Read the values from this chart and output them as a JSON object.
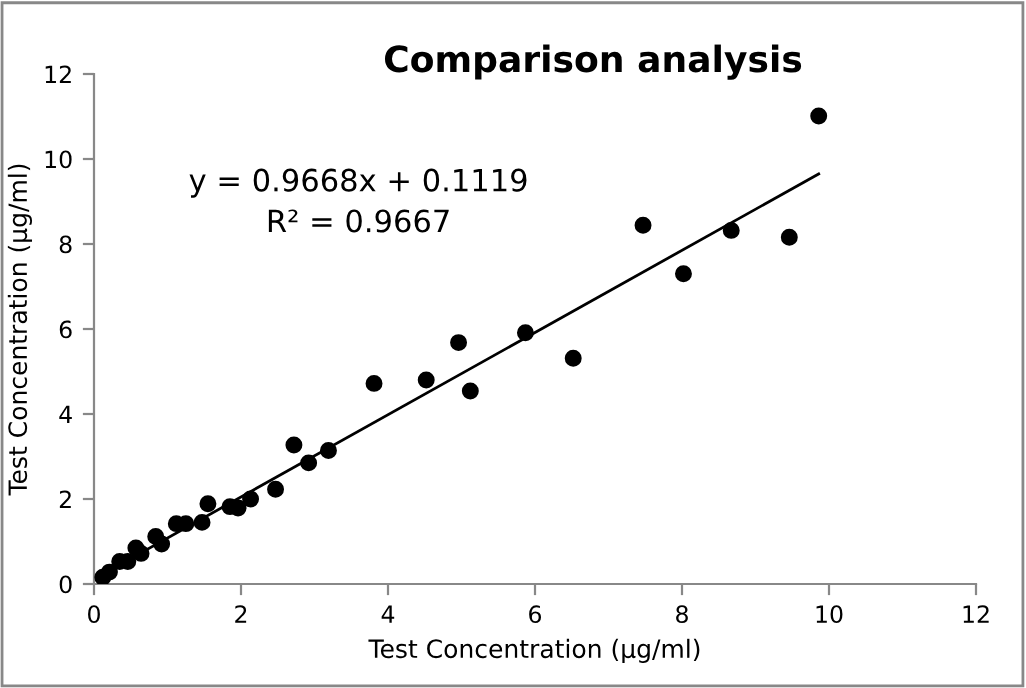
{
  "chart_data": {
    "type": "scatter",
    "title": "Comparison analysis",
    "xlabel": "Test Concentration (µg/ml)",
    "ylabel": "Test Concentration (µg/ml)",
    "annotations": [
      "y = 0.9668x + 0.1119",
      "R² = 0.9667"
    ],
    "series": [
      {
        "color": "#000000",
        "marker": "circle",
        "x": [
          0.12,
          0.21,
          0.35,
          0.46,
          0.57,
          0.64,
          0.84,
          0.92,
          1.12,
          1.25,
          1.47,
          1.55,
          1.85,
          1.96,
          2.13,
          2.47,
          2.72,
          2.92,
          3.19,
          3.81,
          4.52,
          4.96,
          5.12,
          5.87,
          6.52,
          7.47,
          8.02,
          8.67,
          9.46,
          9.86
        ],
        "values": [
          0.16,
          0.28,
          0.53,
          0.53,
          0.85,
          0.72,
          1.12,
          0.94,
          1.42,
          1.42,
          1.45,
          1.89,
          1.82,
          1.79,
          2.0,
          2.23,
          3.27,
          2.85,
          3.14,
          4.72,
          4.8,
          5.68,
          4.54,
          5.91,
          5.31,
          8.44,
          7.3,
          8.32,
          8.16,
          11.01
        ]
      },
      {
        "type": "line",
        "color": "#000000",
        "marker": "none",
        "line_style": "solid",
        "x": [
          0.12,
          9.86
        ],
        "values": [
          0.23,
          9.65
        ]
      }
    ],
    "xlim": [
      0,
      12
    ],
    "ylim": [
      0,
      12
    ],
    "xticks": [
      0,
      2,
      4,
      6,
      8,
      10,
      12
    ],
    "yticks": [
      0,
      2,
      4,
      6,
      8,
      10,
      12
    ],
    "grid": false,
    "legend": false
  }
}
